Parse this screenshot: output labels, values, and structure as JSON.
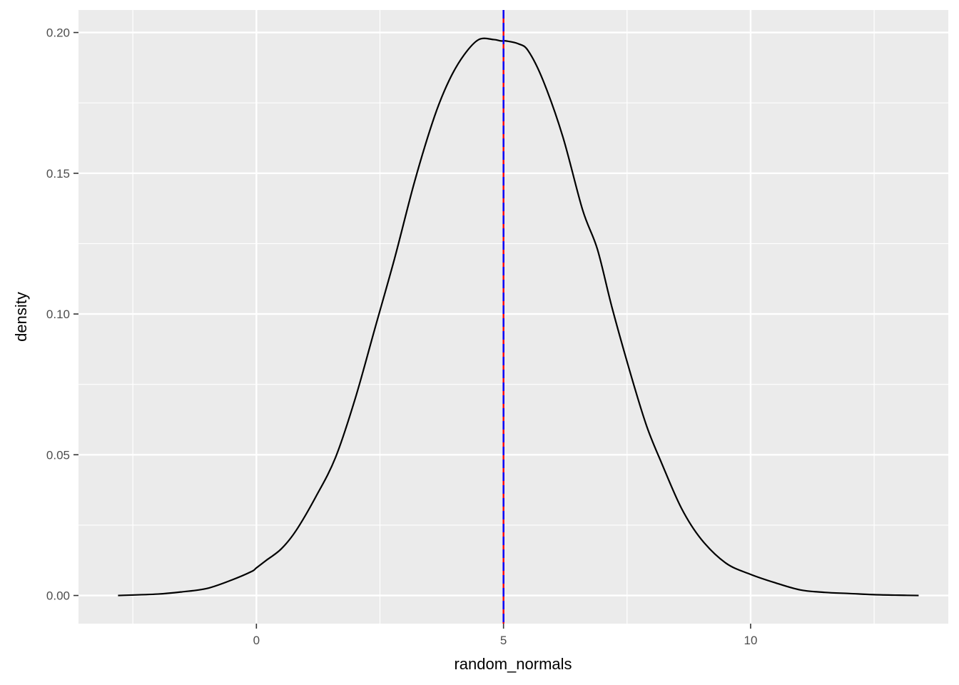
{
  "chart_data": {
    "type": "line",
    "title": "",
    "xlabel": "random_normals",
    "ylabel": "density",
    "xlim": [
      -3.6,
      14.0
    ],
    "ylim": [
      -0.01,
      0.208
    ],
    "x_ticks": [
      0,
      5,
      10
    ],
    "x_tick_labels": [
      "0",
      "5",
      "10"
    ],
    "x_minor_ticks": [
      -2.5,
      2.5,
      7.5,
      12.5
    ],
    "y_ticks": [
      0.0,
      0.05,
      0.1,
      0.15,
      0.2
    ],
    "y_tick_labels": [
      "0.00",
      "0.05",
      "0.10",
      "0.15",
      "0.20"
    ],
    "y_minor_ticks": [
      0.025,
      0.075,
      0.125,
      0.175
    ],
    "grid": true,
    "panel_background": "#ebebeb",
    "series": [
      {
        "color": "#000000",
        "x": [
          -2.8,
          -2.0,
          -1.5,
          -1.0,
          -0.5,
          -0.1,
          0.0,
          0.2,
          0.5,
          0.8,
          1.2,
          1.6,
          2.0,
          2.4,
          2.8,
          3.2,
          3.6,
          3.9,
          4.2,
          4.5,
          4.8,
          4.95,
          5.05,
          5.3,
          5.5,
          5.8,
          6.2,
          6.6,
          6.9,
          7.2,
          7.6,
          7.9,
          8.2,
          8.6,
          9.0,
          9.5,
          10.0,
          10.5,
          11.0,
          11.5,
          12.0,
          12.5,
          13.0,
          13.4
        ],
        "y": [
          0.0,
          0.0005,
          0.0013,
          0.0025,
          0.0055,
          0.0085,
          0.0098,
          0.0125,
          0.0165,
          0.023,
          0.035,
          0.049,
          0.07,
          0.095,
          0.12,
          0.147,
          0.17,
          0.183,
          0.192,
          0.1975,
          0.1975,
          0.197,
          0.197,
          0.196,
          0.1935,
          0.183,
          0.163,
          0.137,
          0.123,
          0.102,
          0.077,
          0.06,
          0.047,
          0.031,
          0.02,
          0.0115,
          0.0075,
          0.0045,
          0.002,
          0.0011,
          0.0007,
          0.0003,
          0.0001,
          0.0
        ]
      }
    ],
    "vlines": [
      {
        "x": 5.0,
        "color": "#ff0000",
        "dash": "solid"
      },
      {
        "x": 5.0,
        "color": "#0000ff",
        "dash": "dashed"
      }
    ]
  }
}
